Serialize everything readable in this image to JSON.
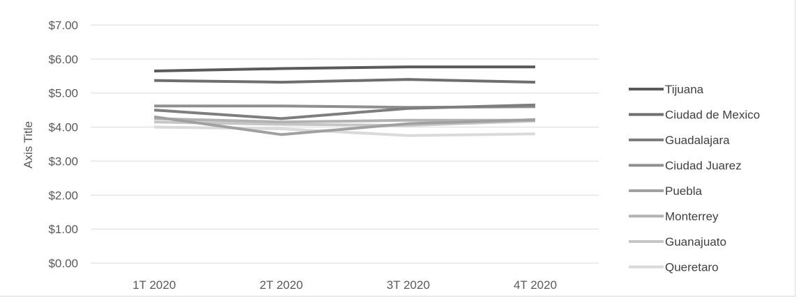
{
  "chart_data": {
    "type": "line",
    "title": "",
    "xlabel": "",
    "ylabel": "Axis Title",
    "categories": [
      "1T 2020",
      "2T 2020",
      "3T 2020",
      "4T 2020"
    ],
    "ylim": [
      0,
      7
    ],
    "y_ticks": [
      "$0.00",
      "$1.00",
      "$2.00",
      "$3.00",
      "$4.00",
      "$5.00",
      "$6.00",
      "$7.00"
    ],
    "grid": true,
    "legend_position": "right",
    "series": [
      {
        "name": "Tijuana",
        "values": [
          5.65,
          5.72,
          5.77,
          5.77
        ],
        "color": "#5a5a5a"
      },
      {
        "name": "Ciudad de Mexico",
        "values": [
          5.37,
          5.32,
          5.4,
          5.32
        ],
        "color": "#6e6e6e"
      },
      {
        "name": "Guadalajara",
        "values": [
          4.5,
          4.25,
          4.55,
          4.65
        ],
        "color": "#7e7e7e"
      },
      {
        "name": "Ciudad Juarez",
        "values": [
          4.62,
          4.62,
          4.58,
          4.6
        ],
        "color": "#8f8f8f"
      },
      {
        "name": "Puebla",
        "values": [
          4.3,
          3.78,
          4.1,
          4.22
        ],
        "color": "#a0a0a0"
      },
      {
        "name": "Monterrey",
        "values": [
          4.25,
          4.15,
          4.2,
          4.2
        ],
        "color": "#b2b2b2"
      },
      {
        "name": "Guanajuato",
        "values": [
          4.15,
          4.08,
          4.05,
          4.18
        ],
        "color": "#c6c6c6"
      },
      {
        "name": "Queretaro",
        "values": [
          4.0,
          3.95,
          3.75,
          3.8
        ],
        "color": "#dadada"
      }
    ]
  }
}
